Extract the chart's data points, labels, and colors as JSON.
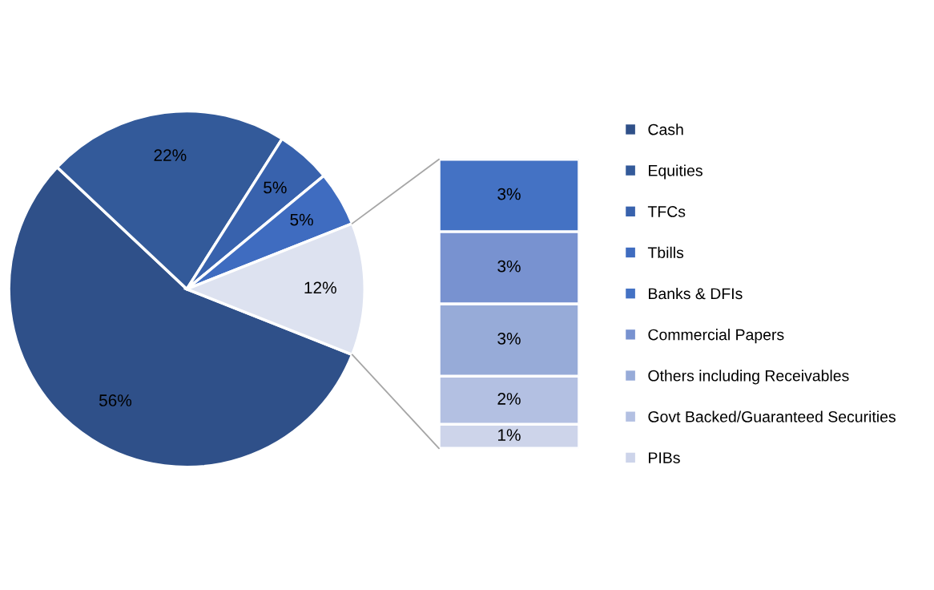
{
  "chart_data": [
    {
      "type": "pie",
      "categories": [
        "Cash",
        "Equities",
        "TFCs",
        "Tbills",
        null
      ],
      "values": [
        56,
        22,
        5,
        5,
        12
      ],
      "value_labels": [
        "56%",
        "22%",
        "5%",
        "5%",
        "12%"
      ],
      "colors": [
        "#2f5089",
        "#335a9a",
        "#3862ad",
        "#3f6cc0",
        "#dde2f0"
      ],
      "legend": "right"
    },
    {
      "type": "bar",
      "stacked": true,
      "categories": [
        null
      ],
      "legend": "right",
      "series": [
        {
          "name": "PIBs",
          "color": "#cdd4ea",
          "values": [
            1
          ],
          "value_labels": [
            "1%"
          ]
        },
        {
          "name": "Govt Backed/Guaranteed Securities",
          "color": "#b3c0e2",
          "values": [
            2
          ],
          "value_labels": [
            "2%"
          ]
        },
        {
          "name": "Others including Receivables",
          "color": "#97abd8",
          "values": [
            3
          ],
          "value_labels": [
            "3%"
          ]
        },
        {
          "name": "Commercial Papers",
          "color": "#7892d0",
          "values": [
            3
          ],
          "value_labels": [
            "3%"
          ]
        },
        {
          "name": "Banks & DFIs",
          "color": "#4472c4",
          "values": [
            3
          ],
          "value_labels": [
            "3%"
          ]
        }
      ]
    }
  ]
}
